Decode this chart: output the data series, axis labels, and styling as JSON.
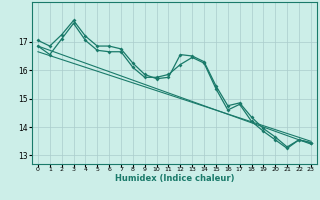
{
  "xlabel": "Humidex (Indice chaleur)",
  "bg_color": "#cceee8",
  "grid_color": "#aacccc",
  "line_color": "#1a7a6a",
  "xlim": [
    -0.5,
    23.5
  ],
  "ylim": [
    12.7,
    18.4
  ],
  "yticks": [
    13,
    14,
    15,
    16,
    17
  ],
  "xticks": [
    0,
    1,
    2,
    3,
    4,
    5,
    6,
    7,
    8,
    9,
    10,
    11,
    12,
    13,
    14,
    15,
    16,
    17,
    18,
    19,
    20,
    21,
    22,
    23
  ],
  "series1_x": [
    0,
    1,
    2,
    3,
    4,
    5,
    6,
    7,
    8,
    9,
    10,
    11,
    12,
    13,
    14,
    15,
    16,
    17,
    18,
    19,
    20,
    21,
    22,
    23
  ],
  "series1_y": [
    17.05,
    16.85,
    17.25,
    17.75,
    17.2,
    16.85,
    16.85,
    16.75,
    16.25,
    15.85,
    15.7,
    15.75,
    16.55,
    16.5,
    16.3,
    15.45,
    14.75,
    14.85,
    14.35,
    13.95,
    13.65,
    13.3,
    13.55,
    13.45
  ],
  "series2_x": [
    0,
    1,
    2,
    3,
    4,
    5,
    6,
    7,
    8,
    9,
    10,
    11,
    12,
    13,
    14,
    15,
    16,
    17,
    18,
    19,
    20,
    21,
    22,
    23
  ],
  "series2_y": [
    16.85,
    16.55,
    17.1,
    17.65,
    17.05,
    16.7,
    16.65,
    16.65,
    16.1,
    15.75,
    15.75,
    15.85,
    16.2,
    16.45,
    16.25,
    15.35,
    14.6,
    14.8,
    14.2,
    13.85,
    13.55,
    13.25,
    13.55,
    13.45
  ],
  "trend1_x": [
    0,
    23
  ],
  "trend1_y": [
    16.85,
    13.4
  ],
  "trend2_x": [
    0,
    23
  ],
  "trend2_y": [
    16.65,
    13.5
  ]
}
